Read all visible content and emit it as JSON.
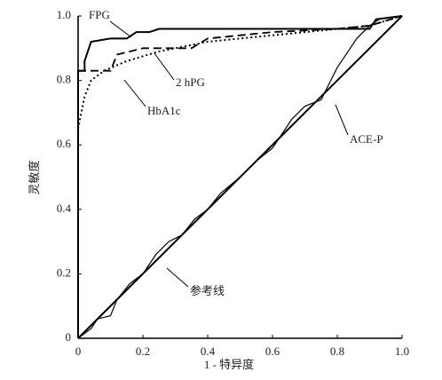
{
  "chart_data": {
    "type": "line",
    "color": "#000000",
    "xlabel": "1 - 特异度",
    "ylabel": "灵敏度",
    "xlim": [
      0,
      1
    ],
    "ylim": [
      0,
      1
    ],
    "xticks": [
      0,
      0.2,
      0.4,
      0.6,
      0.8,
      {
        "value": 1,
        "label": "1.0"
      }
    ],
    "yticks": [
      0,
      0.2,
      0.4,
      0.6,
      0.8,
      {
        "value": 1,
        "label": "1.0"
      }
    ],
    "series": [
      {
        "name": "FPG",
        "dash": "solid",
        "x": [
          0,
          0,
          0.02,
          0.02,
          0.04,
          0.1,
          0.15,
          0.18,
          0.22,
          0.25,
          0.5,
          0.9,
          0.92,
          1
        ],
        "values": [
          0,
          0.83,
          0.83,
          0.86,
          0.92,
          0.93,
          0.93,
          0.95,
          0.95,
          0.96,
          0.96,
          0.96,
          0.99,
          1
        ]
      },
      {
        "name": "2 hPG",
        "dash": "dashed",
        "x": [
          0,
          0.1,
          0.12,
          0.2,
          0.35,
          0.4,
          0.6,
          0.8,
          0.9,
          1
        ],
        "values": [
          0.83,
          0.83,
          0.88,
          0.9,
          0.9,
          0.93,
          0.95,
          0.96,
          0.97,
          1
        ]
      },
      {
        "name": "HbA1c",
        "dash": "dotted",
        "x": [
          0,
          0.01,
          0.02,
          0.04,
          0.08,
          0.15,
          0.25,
          0.4,
          0.6,
          0.8,
          0.9,
          1
        ],
        "values": [
          0.65,
          0.7,
          0.75,
          0.8,
          0.83,
          0.86,
          0.89,
          0.92,
          0.94,
          0.96,
          0.97,
          1
        ]
      },
      {
        "name": "ACE-P",
        "dash": "solid",
        "x": [
          0,
          0.04,
          0.06,
          0.1,
          0.12,
          0.16,
          0.2,
          0.24,
          0.28,
          0.32,
          0.36,
          0.4,
          0.44,
          0.5,
          0.55,
          0.6,
          0.66,
          0.7,
          0.75,
          0.78,
          0.8,
          0.84,
          0.86,
          0.9,
          0.93,
          1
        ],
        "values": [
          0,
          0.03,
          0.06,
          0.07,
          0.12,
          0.17,
          0.2,
          0.26,
          0.3,
          0.32,
          0.37,
          0.4,
          0.45,
          0.5,
          0.55,
          0.59,
          0.68,
          0.72,
          0.74,
          0.8,
          0.84,
          0.9,
          0.93,
          0.97,
          0.99,
          1
        ]
      },
      {
        "name": "参考线",
        "dash": "solid",
        "x": [
          0,
          1
        ],
        "values": [
          0,
          1
        ]
      }
    ]
  }
}
